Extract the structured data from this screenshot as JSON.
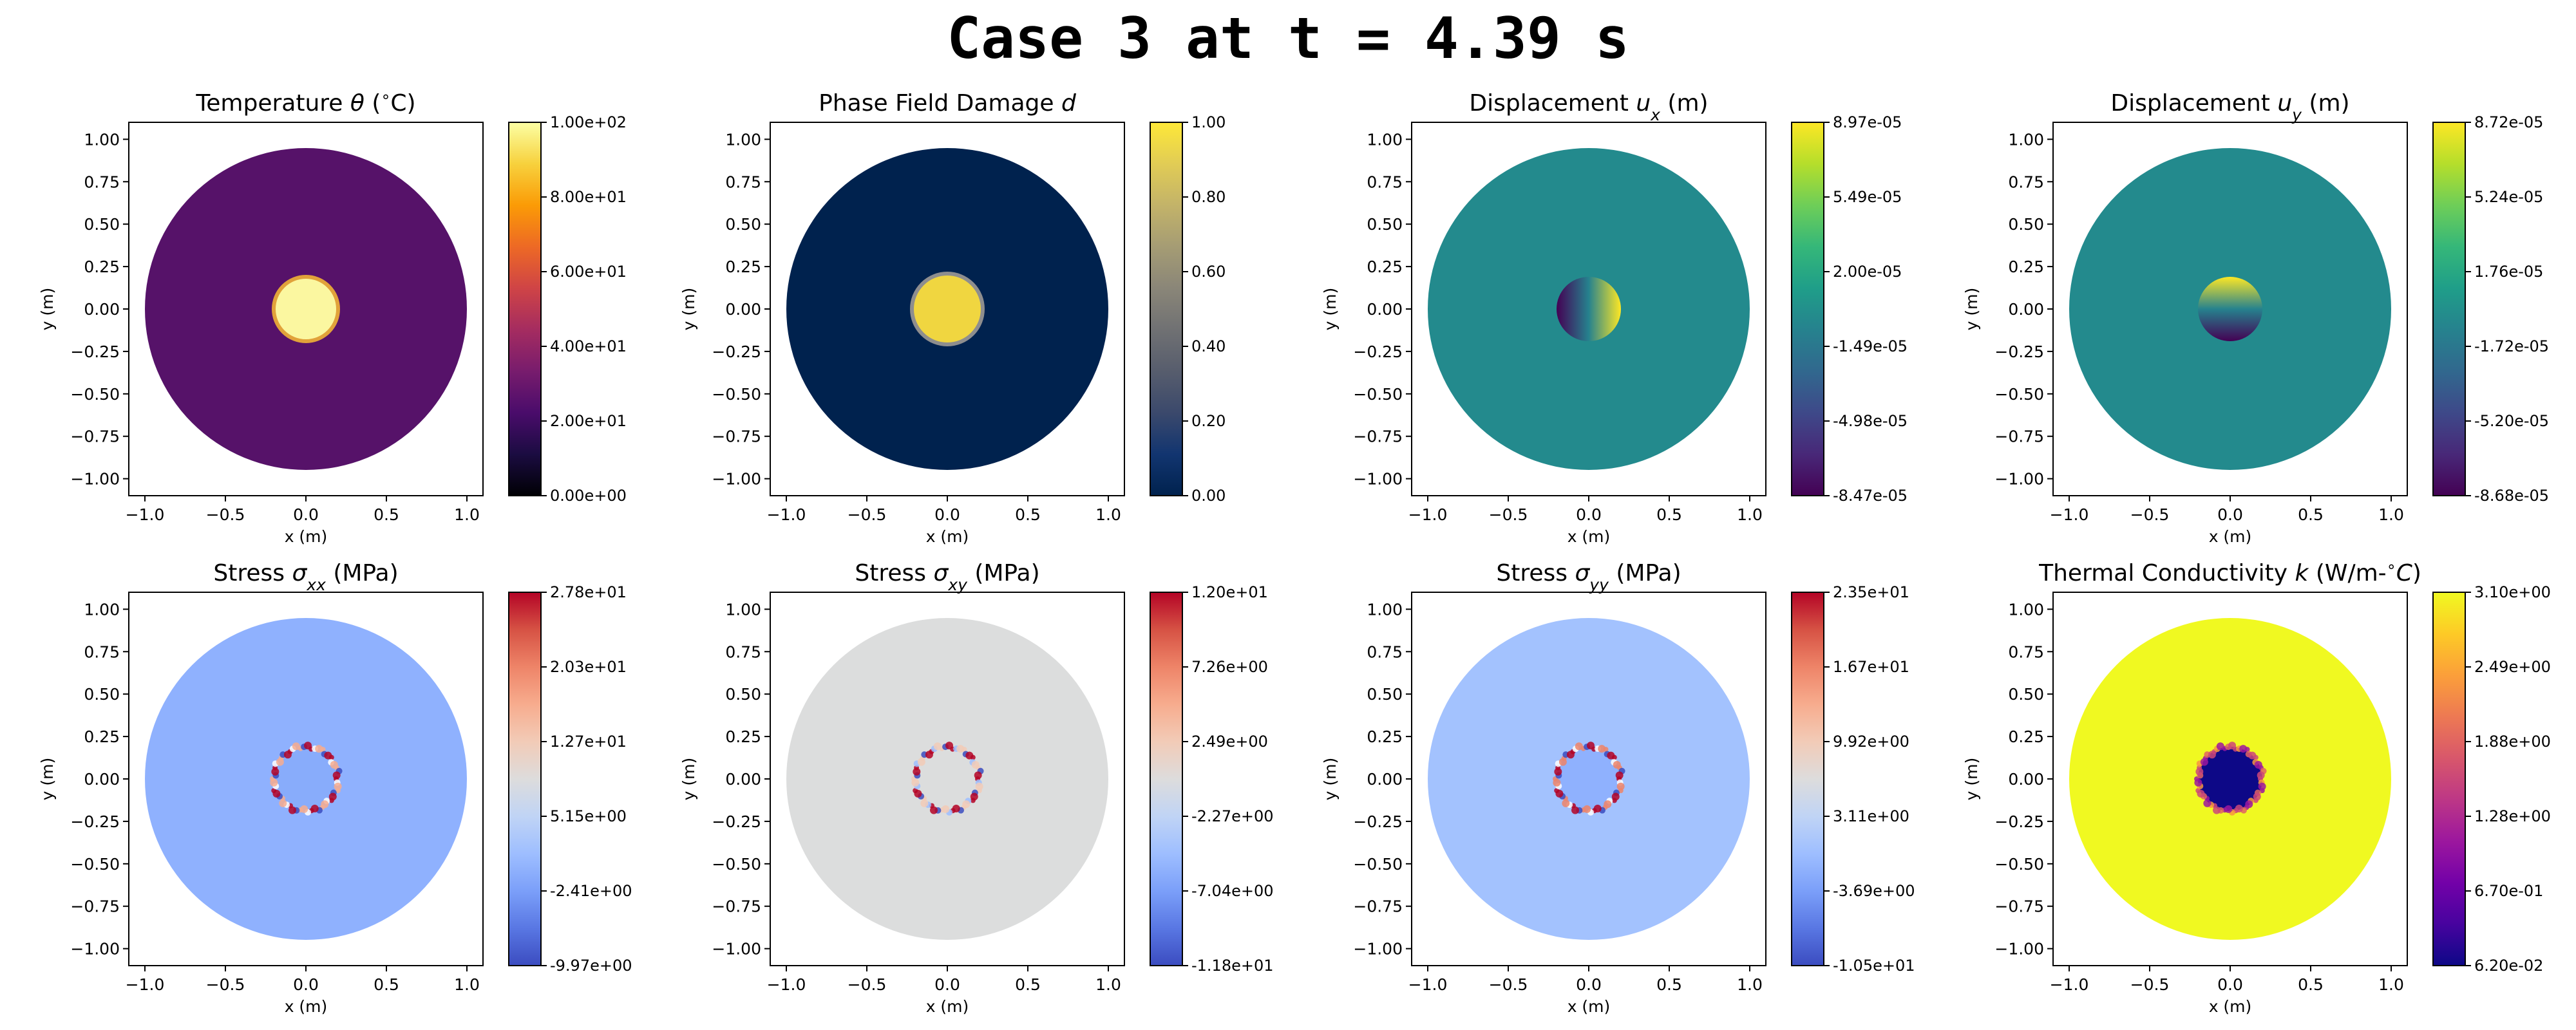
{
  "figure": {
    "title": "Case 3 at t = 4.39 s"
  },
  "chart_data": [
    {
      "type": "heatmap",
      "title": "Temperature θ (°C)",
      "title_parts": [
        [
          "Temperature ",
          "n"
        ],
        [
          "θ",
          "i"
        ],
        [
          " (",
          "n"
        ],
        [
          "∘",
          "sup"
        ],
        [
          "C)",
          "n"
        ]
      ],
      "xlabel": "x (m)",
      "ylabel": "y (m)",
      "xlim": [
        -1.1,
        1.1
      ],
      "ylim": [
        -1.1,
        1.1
      ],
      "xticks": [
        -1.0,
        -0.5,
        0.0,
        0.5,
        1.0
      ],
      "xtick_labels": [
        "−1.0",
        "−0.5",
        "0.0",
        "0.5",
        "1.0"
      ],
      "yticks": [
        -1.0,
        -0.75,
        -0.5,
        -0.25,
        0.0,
        0.25,
        0.5,
        0.75,
        1.0
      ],
      "ytick_labels": [
        "−1.00",
        "−0.75",
        "−0.50",
        "−0.25",
        "0.00",
        "0.25",
        "0.50",
        "0.75",
        "1.00"
      ],
      "domain": {
        "outer_radius": 1.0
      },
      "colormap": {
        "name": "inferno",
        "stops": [
          "#000004",
          "#1b0c41",
          "#4a0c6b",
          "#781c6d",
          "#a52c60",
          "#cf4446",
          "#ed6925",
          "#fb9b06",
          "#f7d13d",
          "#fcffa4"
        ]
      },
      "colorbar": {
        "min": 0.0,
        "max": 100.0,
        "tick_labels": [
          "0.00e+00",
          "2.00e+01",
          "4.00e+01",
          "6.00e+01",
          "8.00e+01",
          "1.00e+02"
        ]
      },
      "field": {
        "background_value": 20,
        "background_color": "#561269",
        "inclusion_radius": 0.2,
        "inclusion_value": 100,
        "inclusion_color": "#fbf7a0",
        "inclusion_edge": "#e1a23a"
      }
    },
    {
      "type": "heatmap",
      "title": "Phase Field Damage d",
      "title_parts": [
        [
          "Phase Field Damage ",
          "n"
        ],
        [
          "d",
          "i"
        ]
      ],
      "xlabel": "x (m)",
      "ylabel": "y (m)",
      "xlim": [
        -1.1,
        1.1
      ],
      "ylim": [
        -1.1,
        1.1
      ],
      "xticks": [
        -1.0,
        -0.5,
        0.0,
        0.5,
        1.0
      ],
      "xtick_labels": [
        "−1.0",
        "−0.5",
        "0.0",
        "0.5",
        "1.0"
      ],
      "yticks": [
        -1.0,
        -0.75,
        -0.5,
        -0.25,
        0.0,
        0.25,
        0.5,
        0.75,
        1.0
      ],
      "ytick_labels": [
        "−1.00",
        "−0.75",
        "−0.50",
        "−0.25",
        "0.00",
        "0.25",
        "0.50",
        "0.75",
        "1.00"
      ],
      "domain": {
        "outer_radius": 1.0
      },
      "colormap": {
        "name": "cividis",
        "stops": [
          "#00224e",
          "#123570",
          "#3b496c",
          "#575d6d",
          "#707173",
          "#8a8678",
          "#a59c74",
          "#c3b369",
          "#e1cc55",
          "#fee838"
        ]
      },
      "colorbar": {
        "min": 0.0,
        "max": 1.0,
        "tick_labels": [
          "0.00",
          "0.20",
          "0.40",
          "0.60",
          "0.80",
          "1.00"
        ]
      },
      "field": {
        "background_value": 0.0,
        "background_color": "#00224e",
        "inclusion_radius": 0.22,
        "inclusion_value": 1.0,
        "inclusion_color": "#f0d640",
        "inclusion_edge": "#8e8e8e"
      }
    },
    {
      "type": "heatmap",
      "title": "Displacement ux (m)",
      "title_parts": [
        [
          "Displacement ",
          "n"
        ],
        [
          "u",
          "i"
        ],
        [
          "x",
          "sub"
        ],
        [
          " (m)",
          "n"
        ]
      ],
      "xlabel": "x (m)",
      "ylabel": "y (m)",
      "xlim": [
        -1.1,
        1.1
      ],
      "ylim": [
        -1.1,
        1.1
      ],
      "xticks": [
        -1.0,
        -0.5,
        0.0,
        0.5,
        1.0
      ],
      "xtick_labels": [
        "−1.0",
        "−0.5",
        "0.0",
        "0.5",
        "1.0"
      ],
      "yticks": [
        -1.0,
        -0.75,
        -0.5,
        -0.25,
        0.0,
        0.25,
        0.5,
        0.75,
        1.0
      ],
      "ytick_labels": [
        "−1.00",
        "−0.75",
        "−0.50",
        "−0.25",
        "0.00",
        "0.25",
        "0.50",
        "0.75",
        "1.00"
      ],
      "domain": {
        "outer_radius": 1.0
      },
      "colormap": {
        "name": "viridis",
        "stops": [
          "#440154",
          "#482878",
          "#3e4989",
          "#31688e",
          "#26828e",
          "#1f9e89",
          "#35b779",
          "#6ece58",
          "#b5de2b",
          "#fde725"
        ]
      },
      "colorbar": {
        "min": -8.47e-05,
        "max": 8.97e-05,
        "tick_labels": [
          "-8.47e-05",
          "-4.98e-05",
          "-1.49e-05",
          "2.00e-05",
          "5.49e-05",
          "8.97e-05"
        ]
      },
      "field": {
        "background_value": 2.5e-06,
        "background_color": "#238a8d",
        "inclusion_radius": 0.2,
        "gradient": "x",
        "gradient_from": "#440154",
        "gradient_to": "#fde725"
      }
    },
    {
      "type": "heatmap",
      "title": "Displacement uy (m)",
      "title_parts": [
        [
          "Displacement ",
          "n"
        ],
        [
          "u",
          "i"
        ],
        [
          "y",
          "sub"
        ],
        [
          " (m)",
          "n"
        ]
      ],
      "xlabel": "x (m)",
      "ylabel": "y (m)",
      "xlim": [
        -1.1,
        1.1
      ],
      "ylim": [
        -1.1,
        1.1
      ],
      "xticks": [
        -1.0,
        -0.5,
        0.0,
        0.5,
        1.0
      ],
      "xtick_labels": [
        "−1.0",
        "−0.5",
        "0.0",
        "0.5",
        "1.0"
      ],
      "yticks": [
        -1.0,
        -0.75,
        -0.5,
        -0.25,
        0.0,
        0.25,
        0.5,
        0.75,
        1.0
      ],
      "ytick_labels": [
        "−1.00",
        "−0.75",
        "−0.50",
        "−0.25",
        "0.00",
        "0.25",
        "0.50",
        "0.75",
        "1.00"
      ],
      "domain": {
        "outer_radius": 1.0
      },
      "colormap": {
        "name": "viridis",
        "stops": [
          "#440154",
          "#482878",
          "#3e4989",
          "#31688e",
          "#26828e",
          "#1f9e89",
          "#35b779",
          "#6ece58",
          "#b5de2b",
          "#fde725"
        ]
      },
      "colorbar": {
        "min": -8.68e-05,
        "max": 8.72e-05,
        "tick_labels": [
          "-8.68e-05",
          "-5.20e-05",
          "-1.72e-05",
          "1.76e-05",
          "5.24e-05",
          "8.72e-05"
        ]
      },
      "field": {
        "background_value": 0.0,
        "background_color": "#238a8d",
        "inclusion_radius": 0.2,
        "gradient": "y",
        "gradient_from": "#440154",
        "gradient_to": "#fde725"
      }
    },
    {
      "type": "heatmap",
      "title": "Stress σxx (MPa)",
      "title_parts": [
        [
          "Stress ",
          "n"
        ],
        [
          "σ",
          "i"
        ],
        [
          "xx",
          "sub"
        ],
        [
          " (MPa)",
          "n"
        ]
      ],
      "xlabel": "x (m)",
      "ylabel": "y (m)",
      "xlim": [
        -1.1,
        1.1
      ],
      "ylim": [
        -1.1,
        1.1
      ],
      "xticks": [
        -1.0,
        -0.5,
        0.0,
        0.5,
        1.0
      ],
      "xtick_labels": [
        "−1.0",
        "−0.5",
        "0.0",
        "0.5",
        "1.0"
      ],
      "yticks": [
        -1.0,
        -0.75,
        -0.5,
        -0.25,
        0.0,
        0.25,
        0.5,
        0.75,
        1.0
      ],
      "ytick_labels": [
        "−1.00",
        "−0.75",
        "−0.50",
        "−0.25",
        "0.00",
        "0.25",
        "0.50",
        "0.75",
        "1.00"
      ],
      "domain": {
        "outer_radius": 1.0
      },
      "colormap": {
        "name": "coolwarm",
        "stops": [
          "#3b4cc0",
          "#5977e3",
          "#7b9ff9",
          "#9ebeff",
          "#c0d4f5",
          "#dddcdc",
          "#f2cbb7",
          "#f7ac8e",
          "#ee8468",
          "#d65244",
          "#b40426"
        ]
      },
      "colorbar": {
        "min": -9.97,
        "max": 27.8,
        "tick_labels": [
          "-9.97e+00",
          "-2.41e+00",
          "5.15e+00",
          "1.27e+01",
          "2.03e+01",
          "2.78e+01"
        ]
      },
      "field": {
        "background_value": 0.0,
        "background_color": "#8fb1fe",
        "inclusion_radius": 0.2,
        "inclusion_color": "#88acfb",
        "ring_colors": [
          "#b40426",
          "#3b4cc0",
          "#f7ac8e",
          "#ffffff"
        ]
      }
    },
    {
      "type": "heatmap",
      "title": "Stress σxy (MPa)",
      "title_parts": [
        [
          "Stress ",
          "n"
        ],
        [
          "σ",
          "i"
        ],
        [
          "xy",
          "sub"
        ],
        [
          " (MPa)",
          "n"
        ]
      ],
      "xlabel": "x (m)",
      "ylabel": "y (m)",
      "xlim": [
        -1.1,
        1.1
      ],
      "ylim": [
        -1.1,
        1.1
      ],
      "xticks": [
        -1.0,
        -0.5,
        0.0,
        0.5,
        1.0
      ],
      "xtick_labels": [
        "−1.0",
        "−0.5",
        "0.0",
        "0.5",
        "1.0"
      ],
      "yticks": [
        -1.0,
        -0.75,
        -0.5,
        -0.25,
        0.0,
        0.25,
        0.5,
        0.75,
        1.0
      ],
      "ytick_labels": [
        "−1.00",
        "−0.75",
        "−0.50",
        "−0.25",
        "0.00",
        "0.25",
        "0.50",
        "0.75",
        "1.00"
      ],
      "domain": {
        "outer_radius": 1.0
      },
      "colormap": {
        "name": "coolwarm",
        "stops": [
          "#3b4cc0",
          "#5977e3",
          "#7b9ff9",
          "#9ebeff",
          "#c0d4f5",
          "#dddcdc",
          "#f2cbb7",
          "#f7ac8e",
          "#ee8468",
          "#d65244",
          "#b40426"
        ]
      },
      "colorbar": {
        "min": -11.8,
        "max": 12.0,
        "tick_labels": [
          "-1.18e+01",
          "-7.04e+00",
          "-2.27e+00",
          "2.49e+00",
          "7.26e+00",
          "1.20e+01"
        ]
      },
      "field": {
        "background_value": 0.0,
        "background_color": "#dcdddd",
        "inclusion_radius": 0.2,
        "inclusion_color": "#dcdddd",
        "ring_colors": [
          "#b40426",
          "#3b4cc0",
          "#f2cbb7",
          "#9ebeff"
        ]
      }
    },
    {
      "type": "heatmap",
      "title": "Stress σyy (MPa)",
      "title_parts": [
        [
          "Stress ",
          "n"
        ],
        [
          "σ",
          "i"
        ],
        [
          "yy",
          "sub"
        ],
        [
          " (MPa)",
          "n"
        ]
      ],
      "xlabel": "x (m)",
      "ylabel": "y (m)",
      "xlim": [
        -1.1,
        1.1
      ],
      "ylim": [
        -1.1,
        1.1
      ],
      "xticks": [
        -1.0,
        -0.5,
        0.0,
        0.5,
        1.0
      ],
      "xtick_labels": [
        "−1.0",
        "−0.5",
        "0.0",
        "0.5",
        "1.0"
      ],
      "yticks": [
        -1.0,
        -0.75,
        -0.5,
        -0.25,
        0.0,
        0.25,
        0.5,
        0.75,
        1.0
      ],
      "ytick_labels": [
        "−1.00",
        "−0.75",
        "−0.50",
        "−0.25",
        "0.00",
        "0.25",
        "0.50",
        "0.75",
        "1.00"
      ],
      "domain": {
        "outer_radius": 1.0
      },
      "colormap": {
        "name": "coolwarm",
        "stops": [
          "#3b4cc0",
          "#5977e3",
          "#7b9ff9",
          "#9ebeff",
          "#c0d4f5",
          "#dddcdc",
          "#f2cbb7",
          "#f7ac8e",
          "#ee8468",
          "#d65244",
          "#b40426"
        ]
      },
      "colorbar": {
        "min": -10.5,
        "max": 23.5,
        "tick_labels": [
          "-1.05e+01",
          "-3.69e+00",
          "3.11e+00",
          "9.92e+00",
          "1.67e+01",
          "2.35e+01"
        ]
      },
      "field": {
        "background_value": 0.0,
        "background_color": "#a3c2fe",
        "inclusion_radius": 0.2,
        "inclusion_color": "#8fb1fe",
        "ring_colors": [
          "#b40426",
          "#3b4cc0",
          "#ee8468",
          "#ffffff"
        ]
      }
    },
    {
      "type": "heatmap",
      "title": "Thermal Conductivity k (W/m-°C)",
      "title_parts": [
        [
          "Thermal Conductivity ",
          "n"
        ],
        [
          "k",
          "i"
        ],
        [
          " (W/m-",
          "n"
        ],
        [
          "∘",
          "sup"
        ],
        [
          "C",
          "i"
        ],
        [
          ")",
          "n"
        ]
      ],
      "xlabel": "x (m)",
      "ylabel": "y (m)",
      "xlim": [
        -1.1,
        1.1
      ],
      "ylim": [
        -1.1,
        1.1
      ],
      "xticks": [
        -1.0,
        -0.5,
        0.0,
        0.5,
        1.0
      ],
      "xtick_labels": [
        "−1.0",
        "−0.5",
        "0.0",
        "0.5",
        "1.0"
      ],
      "yticks": [
        -1.0,
        -0.75,
        -0.5,
        -0.25,
        0.0,
        0.25,
        0.5,
        0.75,
        1.0
      ],
      "ytick_labels": [
        "−1.00",
        "−0.75",
        "−0.50",
        "−0.25",
        "0.00",
        "0.25",
        "0.50",
        "0.75",
        "1.00"
      ],
      "domain": {
        "outer_radius": 1.0
      },
      "colormap": {
        "name": "plasma",
        "stops": [
          "#0d0887",
          "#47039f",
          "#7301a8",
          "#9c179e",
          "#bd3786",
          "#d8576b",
          "#ed7953",
          "#fb9f3a",
          "#fdca26",
          "#f0f921"
        ]
      },
      "colorbar": {
        "min": 0.062,
        "max": 3.1,
        "tick_labels": [
          "6.20e-02",
          "6.70e-01",
          "1.28e+00",
          "1.88e+00",
          "2.49e+00",
          "3.10e+00"
        ]
      },
      "field": {
        "background_value": 3.1,
        "background_color": "#f0f921",
        "inclusion_radius": 0.2,
        "inclusion_value": 0.062,
        "inclusion_color": "#0d0887",
        "ring_colors": [
          "#cc4778",
          "#e16462",
          "#9c179e",
          "#f89540"
        ]
      }
    }
  ]
}
